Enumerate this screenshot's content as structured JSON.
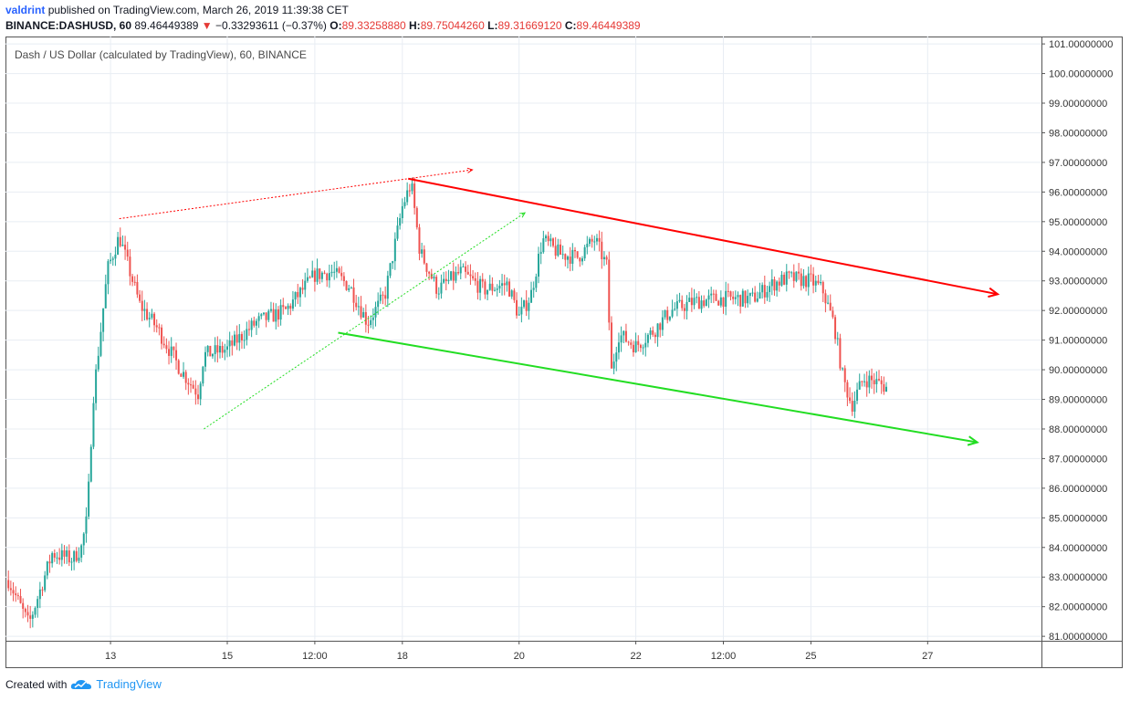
{
  "header": {
    "author": "valdrint",
    "published_text": "published on TradingView.com, March 26, 2019 11:39:38 CET",
    "symbol": "BINANCE:DASHUSD, 60",
    "last_price": "89.46449389",
    "change": "−0.33293611 (−0.37%)",
    "open_label": "O:",
    "open_value": "89.33258880",
    "high_label": "H:",
    "high_value": "89.75044260",
    "low_label": "L:",
    "low_value": "89.31669120",
    "close_label": "C:",
    "close_value": "89.46449389"
  },
  "legend": "Dash / US Dollar (calculated by TradingView), 60, BINANCE",
  "footer": {
    "created_with": "Created with",
    "brand": "TradingView"
  },
  "colors": {
    "up": "#26a69a",
    "down": "#ef5350",
    "resistance": "#ff0000",
    "support": "#22dd22",
    "grid": "#e8edf3"
  },
  "chart_data": {
    "type": "candlestick",
    "x_unit": "days (March 2019, fractional hours)",
    "xlim": [
      11.2,
      28.95
    ],
    "ylim": [
      80.85,
      101.25
    ],
    "y_ticks": [
      "101.00000000",
      "100.00000000",
      "99.00000000",
      "98.00000000",
      "97.00000000",
      "96.00000000",
      "95.00000000",
      "94.00000000",
      "93.00000000",
      "92.00000000",
      "91.00000000",
      "90.00000000",
      "89.00000000",
      "88.00000000",
      "87.00000000",
      "86.00000000",
      "85.00000000",
      "84.00000000",
      "83.00000000",
      "82.00000000",
      "81.00000000"
    ],
    "x_ticks": [
      {
        "x": 13,
        "label": "13"
      },
      {
        "x": 15,
        "label": "15"
      },
      {
        "x": 16.5,
        "label": "12:00"
      },
      {
        "x": 18,
        "label": "18"
      },
      {
        "x": 20,
        "label": "20"
      },
      {
        "x": 22,
        "label": "22"
      },
      {
        "x": 23.5,
        "label": "12:00"
      },
      {
        "x": 25,
        "label": "25"
      },
      {
        "x": 27,
        "label": "27"
      }
    ],
    "price_keypoints": [
      [
        11.25,
        82.9
      ],
      [
        11.6,
        81.4
      ],
      [
        12.0,
        83.8
      ],
      [
        12.35,
        83.6
      ],
      [
        12.5,
        84.0
      ],
      [
        12.6,
        85.0
      ],
      [
        12.7,
        89.0
      ],
      [
        12.95,
        93.4
      ],
      [
        13.15,
        94.5
      ],
      [
        13.5,
        92.2
      ],
      [
        13.8,
        91.4
      ],
      [
        14.2,
        90.0
      ],
      [
        14.5,
        89.2
      ],
      [
        14.6,
        90.5
      ],
      [
        15.0,
        90.7
      ],
      [
        15.5,
        91.6
      ],
      [
        16.0,
        92.0
      ],
      [
        16.5,
        93.2
      ],
      [
        16.8,
        93.3
      ],
      [
        17.1,
        92.8
      ],
      [
        17.4,
        91.6
      ],
      [
        17.7,
        92.5
      ],
      [
        18.0,
        95.5
      ],
      [
        18.15,
        96.3
      ],
      [
        18.3,
        94.0
      ],
      [
        18.6,
        92.7
      ],
      [
        19.0,
        93.3
      ],
      [
        19.4,
        92.7
      ],
      [
        19.8,
        92.9
      ],
      [
        20.0,
        91.8
      ],
      [
        20.2,
        92.5
      ],
      [
        20.4,
        94.4
      ],
      [
        20.7,
        93.9
      ],
      [
        21.0,
        93.8
      ],
      [
        21.3,
        94.4
      ],
      [
        21.5,
        93.5
      ],
      [
        21.58,
        89.9
      ],
      [
        21.7,
        91.2
      ],
      [
        22.0,
        90.8
      ],
      [
        22.3,
        91.3
      ],
      [
        22.6,
        92.0
      ],
      [
        23.0,
        92.3
      ],
      [
        23.4,
        92.4
      ],
      [
        24.0,
        92.4
      ],
      [
        24.35,
        92.9
      ],
      [
        24.6,
        93.1
      ],
      [
        25.0,
        93.0
      ],
      [
        25.2,
        92.7
      ],
      [
        25.4,
        91.5
      ],
      [
        25.55,
        89.7
      ],
      [
        25.7,
        88.8
      ],
      [
        25.9,
        89.7
      ],
      [
        26.1,
        89.6
      ],
      [
        26.3,
        89.4
      ]
    ],
    "drawings": [
      {
        "kind": "trend-arrow",
        "style": "solid",
        "color": "red",
        "from": [
          18.1,
          96.45
        ],
        "to": [
          28.2,
          92.55
        ]
      },
      {
        "kind": "trend-arrow",
        "style": "solid",
        "color": "green",
        "from": [
          16.9,
          91.25
        ],
        "to": [
          27.85,
          87.55
        ]
      },
      {
        "kind": "trend-arrow",
        "style": "dotted",
        "color": "red",
        "from": [
          13.15,
          95.1
        ],
        "to": [
          19.2,
          96.75
        ]
      },
      {
        "kind": "trend-arrow",
        "style": "dotted",
        "color": "green",
        "from": [
          14.6,
          88.0
        ],
        "to": [
          20.1,
          95.3
        ]
      }
    ]
  }
}
